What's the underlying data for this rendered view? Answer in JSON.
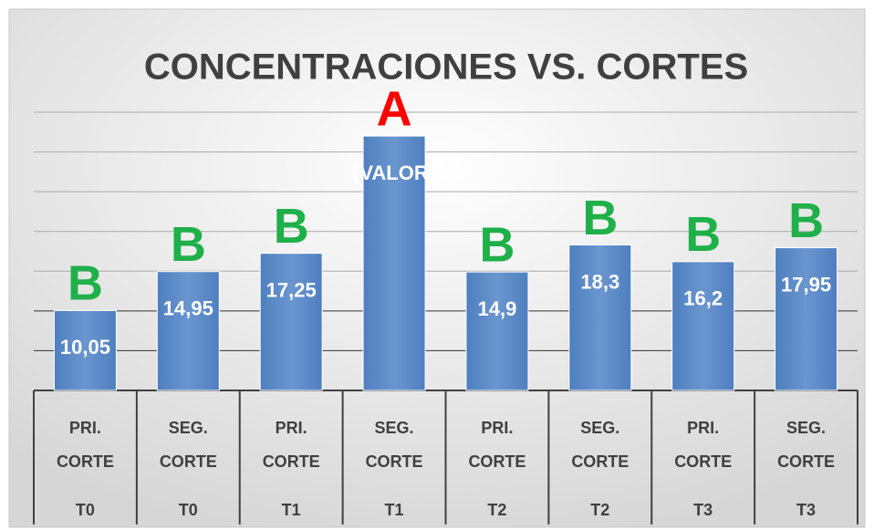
{
  "chart_data": {
    "type": "bar",
    "title": "CONCENTRACIONES VS. CORTES",
    "categories": [
      "PRI. CORTE",
      "SEG. CORTE",
      "PRI. CORTE",
      "SEG. CORTE",
      "PRI. CORTE",
      "SEG. CORTE",
      "PRI. CORTE",
      "SEG. CORTE"
    ],
    "groups": [
      "T0",
      "T0",
      "T1",
      "T1",
      "T2",
      "T2",
      "T3",
      "T3"
    ],
    "values": [
      10.05,
      14.95,
      17.25,
      32,
      14.9,
      18.3,
      16.2,
      17.95
    ],
    "value_labels": [
      "10,05",
      "14,95",
      "17,25",
      "[VALOR]",
      "14,9",
      "18,3",
      "16,2",
      "17,95"
    ],
    "letters": [
      "B",
      "B",
      "B",
      "A",
      "B",
      "B",
      "B",
      "B"
    ],
    "letter_colors": [
      "#1fb04a",
      "#1fb04a",
      "#1fb04a",
      "#ff0000",
      "#1fb04a",
      "#1fb04a",
      "#1fb04a",
      "#1fb04a"
    ],
    "color": "#5b88c4",
    "ylim": [
      0,
      35
    ],
    "yticks": [
      0,
      5,
      10,
      15,
      20,
      25,
      30,
      35
    ],
    "grid": true
  }
}
